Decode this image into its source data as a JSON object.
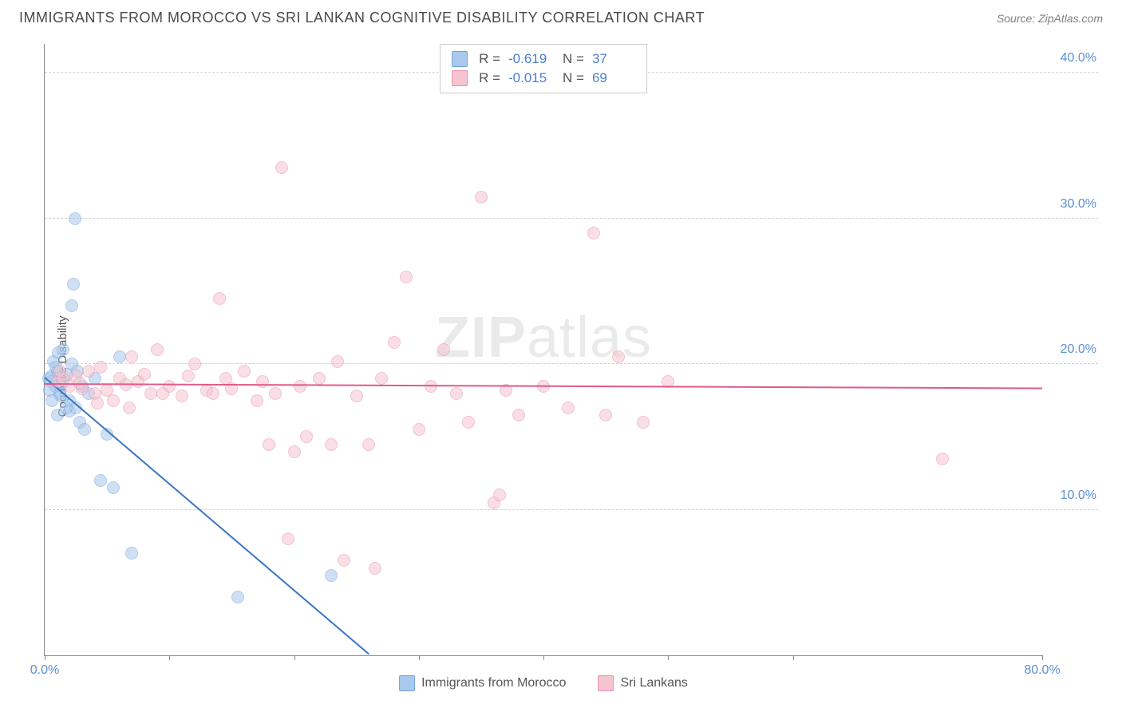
{
  "header": {
    "title": "IMMIGRANTS FROM MOROCCO VS SRI LANKAN COGNITIVE DISABILITY CORRELATION CHART",
    "source_prefix": "Source: ",
    "source_name": "ZipAtlas.com"
  },
  "watermark": {
    "zip": "ZIP",
    "atlas": "atlas"
  },
  "chart": {
    "type": "scatter",
    "ylabel": "Cognitive Disability",
    "background_color": "#ffffff",
    "grid_color": "#d0d0d0",
    "axis_color": "#888888",
    "tick_label_color": "#5b8fd6",
    "xlim": [
      0,
      80
    ],
    "ylim": [
      0,
      42
    ],
    "xticks": [
      0,
      10,
      20,
      30,
      40,
      50,
      60,
      80
    ],
    "xtick_labels": {
      "0": "0.0%",
      "80": "80.0%"
    },
    "yticks": [
      10,
      20,
      30,
      40
    ],
    "ytick_labels": {
      "10": "10.0%",
      "20": "20.0%",
      "30": "30.0%",
      "40": "40.0%"
    },
    "marker_radius": 8,
    "marker_opacity": 0.55,
    "series": [
      {
        "name": "Immigrants from Morocco",
        "fill": "#a8c8ec",
        "stroke": "#6fa3dd",
        "trend_color": "#3a75c4",
        "trend_width": 2,
        "R": "-0.619",
        "N": "37",
        "trend": {
          "x1": 0,
          "y1": 19.0,
          "x2": 26,
          "y2": 0
        },
        "points": [
          [
            0.3,
            19.0
          ],
          [
            0.5,
            18.8
          ],
          [
            0.6,
            19.2
          ],
          [
            0.8,
            18.5
          ],
          [
            1.0,
            19.5
          ],
          [
            0.7,
            20.2
          ],
          [
            0.4,
            18.2
          ],
          [
            1.2,
            18.0
          ],
          [
            1.5,
            21.0
          ],
          [
            1.8,
            19.3
          ],
          [
            2.0,
            17.5
          ],
          [
            2.2,
            20.0
          ],
          [
            2.0,
            16.8
          ],
          [
            2.5,
            17.0
          ],
          [
            2.8,
            16.0
          ],
          [
            3.0,
            18.5
          ],
          [
            3.5,
            18.0
          ],
          [
            2.3,
            25.5
          ],
          [
            2.2,
            24.0
          ],
          [
            2.4,
            30.0
          ],
          [
            5.0,
            15.2
          ],
          [
            6.0,
            20.5
          ],
          [
            4.5,
            12.0
          ],
          [
            7.0,
            7.0
          ],
          [
            5.5,
            11.5
          ],
          [
            1.0,
            16.5
          ],
          [
            1.3,
            17.8
          ],
          [
            1.7,
            17.0
          ],
          [
            0.9,
            19.8
          ],
          [
            1.4,
            18.7
          ],
          [
            15.5,
            4.0
          ],
          [
            23.0,
            5.5
          ],
          [
            3.2,
            15.5
          ],
          [
            4.0,
            19.0
          ],
          [
            1.1,
            20.8
          ],
          [
            0.6,
            17.5
          ],
          [
            2.6,
            19.5
          ]
        ]
      },
      {
        "name": "Sri Lankans",
        "fill": "#f5c4d0",
        "stroke": "#e892aa",
        "trend_color": "#e05a8a",
        "trend_width": 2,
        "R": "-0.015",
        "N": "69",
        "trend": {
          "x1": 0,
          "y1": 18.6,
          "x2": 80,
          "y2": 18.3
        },
        "points": [
          [
            1.0,
            18.8
          ],
          [
            1.5,
            19.0
          ],
          [
            2.0,
            18.5
          ],
          [
            2.5,
            19.2
          ],
          [
            3.0,
            18.3
          ],
          [
            3.5,
            19.5
          ],
          [
            4.0,
            18.0
          ],
          [
            4.5,
            19.8
          ],
          [
            5.0,
            18.2
          ],
          [
            5.5,
            17.5
          ],
          [
            6.0,
            19.0
          ],
          [
            6.5,
            18.6
          ],
          [
            7.0,
            20.5
          ],
          [
            7.5,
            18.8
          ],
          [
            8.0,
            19.3
          ],
          [
            8.5,
            18.0
          ],
          [
            9.0,
            21.0
          ],
          [
            10.0,
            18.5
          ],
          [
            11.0,
            17.8
          ],
          [
            12.0,
            20.0
          ],
          [
            13.0,
            18.2
          ],
          [
            14.0,
            24.5
          ],
          [
            14.5,
            19.0
          ],
          [
            15.0,
            18.3
          ],
          [
            16.0,
            19.5
          ],
          [
            17.0,
            17.5
          ],
          [
            18.0,
            14.5
          ],
          [
            18.5,
            18.0
          ],
          [
            19.0,
            33.5
          ],
          [
            20.0,
            14.0
          ],
          [
            20.5,
            18.5
          ],
          [
            21.0,
            15.0
          ],
          [
            22.0,
            19.0
          ],
          [
            23.0,
            14.5
          ],
          [
            23.5,
            20.2
          ],
          [
            25.0,
            17.8
          ],
          [
            26.0,
            14.5
          ],
          [
            27.0,
            19.0
          ],
          [
            28.0,
            21.5
          ],
          [
            29.0,
            26.0
          ],
          [
            30.0,
            15.5
          ],
          [
            31.0,
            18.5
          ],
          [
            32.0,
            21.0
          ],
          [
            33.0,
            18.0
          ],
          [
            34.0,
            16.0
          ],
          [
            35.0,
            31.5
          ],
          [
            36.0,
            10.5
          ],
          [
            37.0,
            18.2
          ],
          [
            38.0,
            16.5
          ],
          [
            40.0,
            18.5
          ],
          [
            42.0,
            17.0
          ],
          [
            44.0,
            29.0
          ],
          [
            45.0,
            16.5
          ],
          [
            46.0,
            20.5
          ],
          [
            48.0,
            16.0
          ],
          [
            50.0,
            18.8
          ],
          [
            72.0,
            13.5
          ],
          [
            19.5,
            8.0
          ],
          [
            24.0,
            6.5
          ],
          [
            26.5,
            6.0
          ],
          [
            17.5,
            18.8
          ],
          [
            13.5,
            18.0
          ],
          [
            36.5,
            11.0
          ],
          [
            1.2,
            19.5
          ],
          [
            2.8,
            18.7
          ],
          [
            4.2,
            17.3
          ],
          [
            6.8,
            17.0
          ],
          [
            9.5,
            18.0
          ],
          [
            11.5,
            19.2
          ]
        ]
      }
    ],
    "legend": {
      "stats_labels": {
        "R": "R =",
        "N": "N ="
      }
    }
  }
}
